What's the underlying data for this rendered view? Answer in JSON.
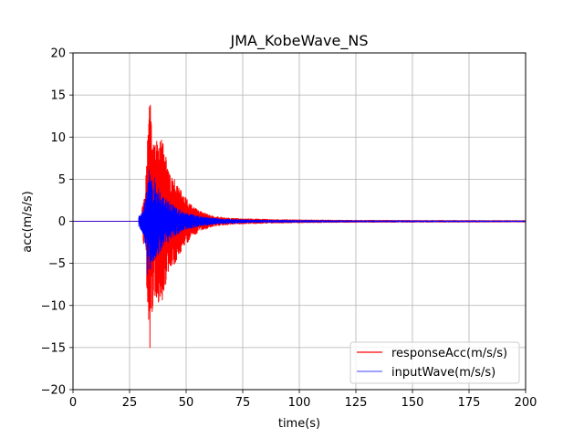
{
  "chart_data": {
    "type": "line",
    "title": "JMA_KobeWave_NS",
    "xlabel": "time(s)",
    "ylabel": "acc(m/s/s)",
    "xlim": [
      0,
      200
    ],
    "ylim": [
      -20,
      20
    ],
    "xticks": [
      0,
      25,
      50,
      75,
      100,
      125,
      150,
      175,
      200
    ],
    "yticks": [
      -20,
      -15,
      -10,
      -5,
      0,
      5,
      10,
      15,
      20
    ],
    "xtick_labels": [
      "0",
      "25",
      "50",
      "75",
      "100",
      "125",
      "150",
      "175",
      "200"
    ],
    "ytick_labels": [
      "−20",
      "−15",
      "−10",
      "−5",
      "0",
      "5",
      "10",
      "15",
      "20"
    ],
    "grid": true,
    "legend_position": "lower-right",
    "series": [
      {
        "name": "responseAcc(m/s/s)",
        "color": "#ff0000",
        "envelope": {
          "start": 30,
          "end": 200,
          "key_points": [
            [
              30,
              0.5
            ],
            [
              32,
              4.5
            ],
            [
              33,
              10.5
            ],
            [
              34,
              15.0
            ],
            [
              35,
              11.5
            ],
            [
              36,
              9.0
            ],
            [
              38,
              10.0
            ],
            [
              40,
              9.5
            ],
            [
              42,
              6.0
            ],
            [
              45,
              5.0
            ],
            [
              48,
              3.5
            ],
            [
              52,
              2.0
            ],
            [
              56,
              1.2
            ],
            [
              62,
              0.6
            ],
            [
              70,
              0.35
            ],
            [
              90,
              0.2
            ],
            [
              120,
              0.12
            ],
            [
              200,
              0.08
            ]
          ]
        },
        "extremes": [
          {
            "x": 34.0,
            "y": -15.0
          },
          {
            "x": 34.5,
            "y": 11.8
          },
          {
            "x": 33.2,
            "y": 10.2
          },
          {
            "x": 38.7,
            "y": 8.7
          },
          {
            "x": 37.1,
            "y": -7.6
          },
          {
            "x": 35.8,
            "y": -8.2
          }
        ]
      },
      {
        "name": "inputWave(m/s/s)",
        "color": "#0000ff",
        "envelope": {
          "start": 29,
          "end": 200,
          "key_points": [
            [
              29,
              0.6
            ],
            [
              31,
              1.5
            ],
            [
              32.5,
              3.5
            ],
            [
              33.5,
              6.3
            ],
            [
              35,
              5.0
            ],
            [
              37,
              4.5
            ],
            [
              40,
              3.0
            ],
            [
              44,
              2.0
            ],
            [
              50,
              1.0
            ],
            [
              56,
              0.6
            ],
            [
              65,
              0.3
            ],
            [
              80,
              0.15
            ],
            [
              120,
              0.08
            ],
            [
              200,
              0.05
            ]
          ]
        },
        "extremes": [
          {
            "x": 32.8,
            "y": -6.3
          },
          {
            "x": 32.5,
            "y": 3.5
          },
          {
            "x": 36.0,
            "y": 5.2
          },
          {
            "x": 34.0,
            "y": -4.8
          }
        ]
      }
    ]
  }
}
